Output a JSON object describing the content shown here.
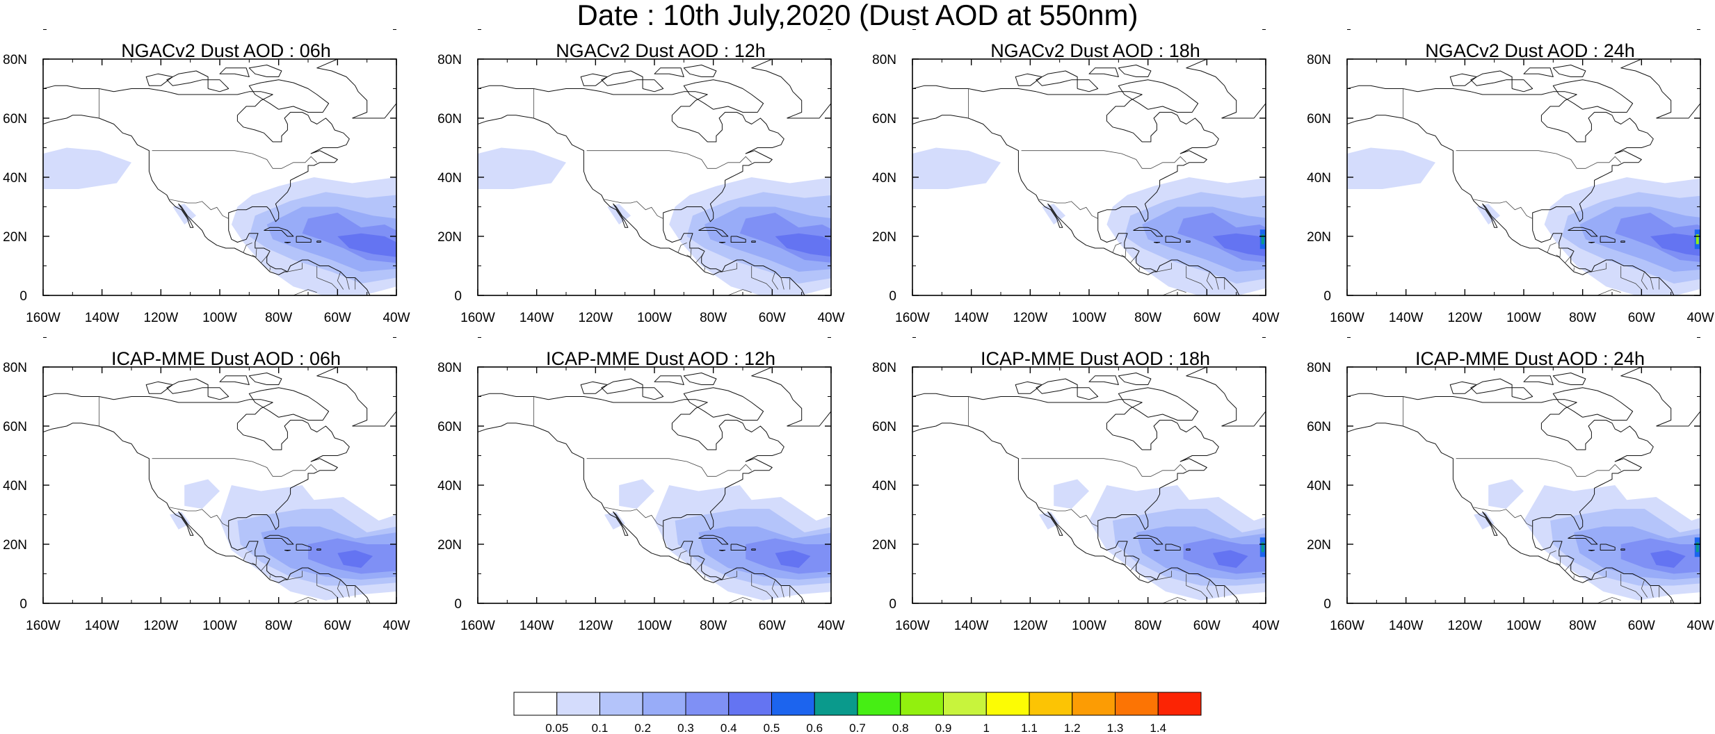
{
  "title": "Date : 10th July,2020 (Dust AOD at 550nm)",
  "lat_ticks": [
    "0",
    "20N",
    "40N",
    "60N",
    "80N"
  ],
  "lon_ticks": [
    "160W",
    "140W",
    "120W",
    "100W",
    "80W",
    "60W",
    "40W"
  ],
  "panels": [
    {
      "title": "NGACv2 Dust AOD : 06h"
    },
    {
      "title": "NGACv2 Dust AOD : 12h"
    },
    {
      "title": "NGACv2 Dust AOD : 18h"
    },
    {
      "title": "NGACv2 Dust AOD : 24h"
    },
    {
      "title": "ICAP-MME Dust AOD : 06h"
    },
    {
      "title": "ICAP-MME Dust AOD : 12h"
    },
    {
      "title": "ICAP-MME Dust AOD : 18h"
    },
    {
      "title": "ICAP-MME Dust AOD : 24h"
    }
  ],
  "map_extent": {
    "lon": [
      -160,
      -40
    ],
    "lat": [
      0,
      80
    ]
  },
  "colorbar": {
    "labels": [
      "0.05",
      "0.1",
      "0.2",
      "0.3",
      "0.4",
      "0.5",
      "0.6",
      "0.7",
      "0.8",
      "0.9",
      "1",
      "1.1",
      "1.2",
      "1.3",
      "1.4"
    ],
    "colors": [
      "#ffffff",
      "#d4dcfc",
      "#b4c4fa",
      "#98acf8",
      "#7f90f5",
      "#6474f2",
      "#1c64ee",
      "#0a9a8c",
      "#46ee14",
      "#92f00e",
      "#c8f43c",
      "#fcfc04",
      "#fcc404",
      "#fc9c04",
      "#fc7404",
      "#fc2404"
    ]
  }
}
